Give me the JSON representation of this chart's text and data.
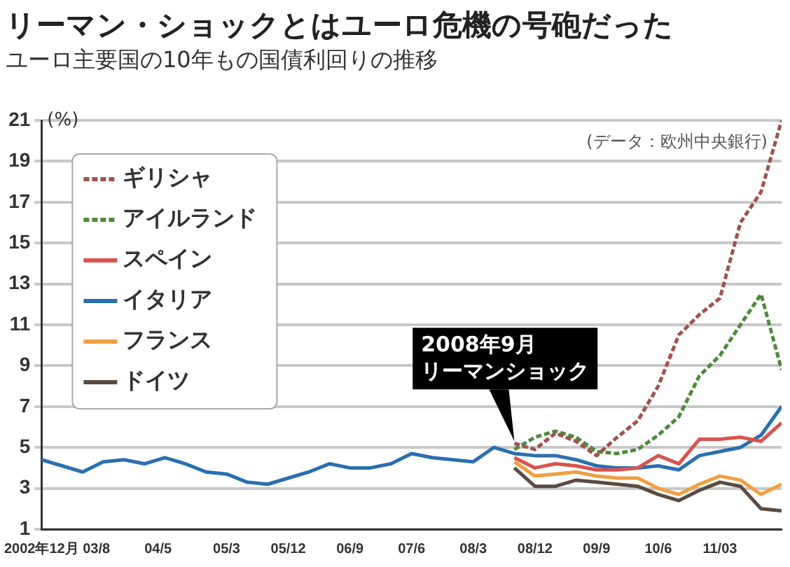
{
  "chart_data": {
    "type": "line",
    "title": "リーマン・ショックとはユーロ危機の号砲だった",
    "subtitle": "ユーロ主要国の10年もの国債利回りの推移",
    "ylabel": "(%)",
    "annotations": [
      "(データ：欧州中央銀行)",
      {
        "text": "2008年9月リーマンショック",
        "x": "2008-09",
        "y": 5.1
      }
    ],
    "x": [
      "2002-12",
      "2003-03",
      "2003-06",
      "2003-09",
      "2003-12",
      "2004-03",
      "2004-06",
      "2004-09",
      "2004-12",
      "2005-03",
      "2005-06",
      "2005-09",
      "2005-12",
      "2006-03",
      "2006-06",
      "2006-09",
      "2006-12",
      "2007-03",
      "2007-06",
      "2007-09",
      "2007-12",
      "2008-03",
      "2008-06",
      "2008-09",
      "2008-12",
      "2009-03",
      "2009-06",
      "2009-09",
      "2009-12",
      "2010-03",
      "2010-06",
      "2010-09",
      "2010-12",
      "2011-03",
      "2011-06",
      "2011-09",
      "2011-12"
    ],
    "series": [
      {
        "name": "ギリシャ",
        "color": "#a0524f",
        "line_style": "dashed",
        "values": [
          null,
          null,
          null,
          null,
          null,
          null,
          null,
          null,
          null,
          null,
          null,
          null,
          null,
          null,
          null,
          null,
          null,
          null,
          null,
          null,
          null,
          null,
          null,
          5.2,
          4.9,
          5.7,
          5.3,
          4.6,
          5.5,
          6.3,
          8.0,
          10.5,
          11.5,
          12.3,
          16.0,
          17.5,
          21.0
        ]
      },
      {
        "name": "アイルランド",
        "color": "#4e8a3e",
        "line_style": "dashed",
        "values": [
          null,
          null,
          null,
          null,
          null,
          null,
          null,
          null,
          null,
          null,
          null,
          null,
          null,
          null,
          null,
          null,
          null,
          null,
          null,
          null,
          null,
          null,
          null,
          4.9,
          5.5,
          5.8,
          5.5,
          4.8,
          4.7,
          4.9,
          5.6,
          6.5,
          8.5,
          9.5,
          11.0,
          12.5,
          8.8
        ]
      },
      {
        "name": "スペイン",
        "color": "#d9534f",
        "line_style": "solid",
        "values": [
          null,
          null,
          null,
          null,
          null,
          null,
          null,
          null,
          null,
          null,
          null,
          null,
          null,
          null,
          null,
          null,
          null,
          null,
          null,
          null,
          null,
          null,
          null,
          4.5,
          4.0,
          4.2,
          4.1,
          3.9,
          3.9,
          4.0,
          4.6,
          4.2,
          5.4,
          5.4,
          5.5,
          5.3,
          6.2
        ]
      },
      {
        "name": "イタリア",
        "color": "#2a6fb0",
        "line_style": "solid",
        "values": [
          4.4,
          4.1,
          3.8,
          4.3,
          4.4,
          4.2,
          4.5,
          4.2,
          3.8,
          3.7,
          3.3,
          3.2,
          3.5,
          3.8,
          4.2,
          4.0,
          4.0,
          4.2,
          4.7,
          4.5,
          4.4,
          4.3,
          5.0,
          4.7,
          4.6,
          4.6,
          4.4,
          4.1,
          4.0,
          4.0,
          4.1,
          3.9,
          4.6,
          4.8,
          5.0,
          5.6,
          7.0
        ]
      },
      {
        "name": "フランス",
        "color": "#f0a040",
        "line_style": "solid",
        "values": [
          null,
          null,
          null,
          null,
          null,
          null,
          null,
          null,
          null,
          null,
          null,
          null,
          null,
          null,
          null,
          null,
          null,
          null,
          null,
          null,
          null,
          null,
          null,
          4.3,
          3.6,
          3.7,
          3.8,
          3.6,
          3.5,
          3.5,
          3.0,
          2.7,
          3.2,
          3.6,
          3.4,
          2.7,
          3.2
        ]
      },
      {
        "name": "ドイツ",
        "color": "#5a4a40",
        "line_style": "solid",
        "values": [
          null,
          null,
          null,
          null,
          null,
          null,
          null,
          null,
          null,
          null,
          null,
          null,
          null,
          null,
          null,
          null,
          null,
          null,
          null,
          null,
          null,
          null,
          null,
          4.0,
          3.1,
          3.1,
          3.4,
          3.3,
          3.2,
          3.1,
          2.7,
          2.4,
          2.9,
          3.3,
          3.1,
          2.0,
          1.9
        ]
      }
    ],
    "xlim": [
      "2002-12",
      "2011-12"
    ],
    "xticks": [
      {
        "value": "2002-12",
        "label": "2002年12月"
      },
      {
        "value": "2003-08",
        "label": "03/8"
      },
      {
        "value": "2004-05",
        "label": "04/5"
      },
      {
        "value": "2005-03",
        "label": "05/3"
      },
      {
        "value": "2005-12",
        "label": "05/12"
      },
      {
        "value": "2006-09",
        "label": "06/9"
      },
      {
        "value": "2007-06",
        "label": "07/6"
      },
      {
        "value": "2008-03",
        "label": "08/3"
      },
      {
        "value": "2008-12",
        "label": "08/12"
      },
      {
        "value": "2009-09",
        "label": "09/9"
      },
      {
        "value": "2010-06",
        "label": "10/6"
      },
      {
        "value": "2011-03",
        "label": "11/03"
      }
    ],
    "ylim": [
      1,
      21
    ],
    "yticks": [
      1,
      3,
      5,
      7,
      9,
      11,
      13,
      15,
      17,
      19,
      21
    ],
    "grid": "y",
    "legend": "top left",
    "marker": "none"
  }
}
